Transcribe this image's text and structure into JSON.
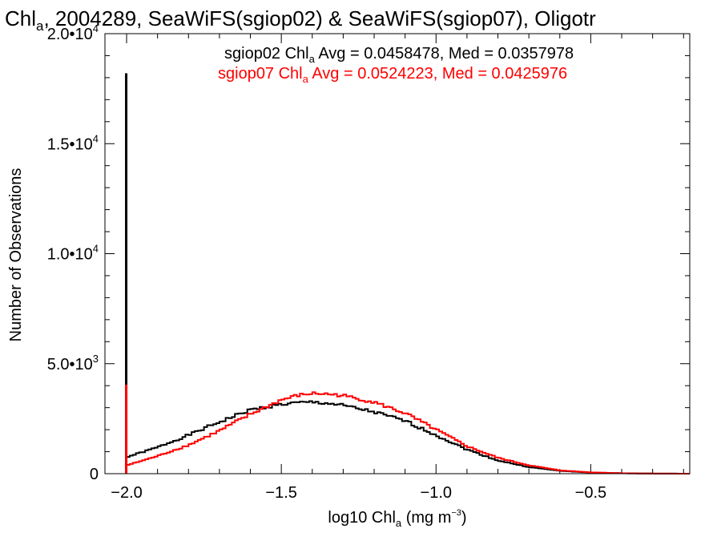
{
  "chart_data": {
    "type": "step-histogram",
    "title": {
      "prefix": "Chl",
      "sub": "a",
      "rest": ", 2004289, SeaWiFS(sgiop02) & SeaWiFS(sgiop07), Oligotr"
    },
    "xlabel": {
      "prefix": "log10 Chl",
      "sub": "a",
      "mid": " (mg m",
      "sup": "−3",
      "suffix": ")"
    },
    "ylabel": "Number of Observations",
    "xlim": [
      -2.07,
      -0.18
    ],
    "ylim": [
      0,
      20000
    ],
    "x_ticks": [
      {
        "value": -2.0,
        "label": "−2.0"
      },
      {
        "value": -1.5,
        "label": "−1.5"
      },
      {
        "value": -1.0,
        "label": "−1.0"
      },
      {
        "value": -0.5,
        "label": "−0.5"
      }
    ],
    "y_ticks": [
      {
        "value": 0,
        "label": "0",
        "exp": ""
      },
      {
        "value": 5000,
        "label": "5.0•10",
        "exp": "3"
      },
      {
        "value": 10000,
        "label": "1.0•10",
        "exp": "4"
      },
      {
        "value": 15000,
        "label": "1.5•10",
        "exp": "4"
      },
      {
        "value": 20000,
        "label": "2.0•10",
        "exp": "4"
      }
    ],
    "legend": [
      {
        "prefix": "sgiop02 Chl",
        "sub": "a",
        "rest": " Avg = 0.0458478, Med = 0.0357978",
        "color": "#000000"
      },
      {
        "prefix": "sgiop07 Chl",
        "sub": "a",
        "rest": " Avg = 0.0524223, Med = 0.0425976",
        "color": "#ff0000"
      }
    ],
    "series": [
      {
        "name": "sgiop02",
        "color": "#000000",
        "spike": {
          "x": -2.0,
          "y": 18200
        },
        "x": [
          -2.0,
          -1.9,
          -1.8,
          -1.7,
          -1.6,
          -1.5,
          -1.45,
          -1.4,
          -1.35,
          -1.3,
          -1.2,
          -1.1,
          -1.0,
          -0.9,
          -0.8,
          -0.7,
          -0.6,
          -0.5,
          -0.4,
          -0.3,
          -0.18
        ],
        "y": [
          750,
          1200,
          1750,
          2350,
          2900,
          3150,
          3220,
          3250,
          3200,
          3100,
          2800,
          2400,
          1750,
          1100,
          600,
          300,
          130,
          50,
          20,
          5,
          0
        ]
      },
      {
        "name": "sgiop07",
        "color": "#ff0000",
        "spike": {
          "x": -2.0,
          "y": 4050
        },
        "x": [
          -2.0,
          -1.9,
          -1.8,
          -1.7,
          -1.6,
          -1.5,
          -1.45,
          -1.4,
          -1.35,
          -1.3,
          -1.2,
          -1.1,
          -1.0,
          -0.9,
          -0.8,
          -0.7,
          -0.6,
          -0.5,
          -0.4,
          -0.3,
          -0.18
        ],
        "y": [
          380,
          800,
          1300,
          1950,
          2700,
          3350,
          3550,
          3650,
          3620,
          3550,
          3250,
          2750,
          2000,
          1250,
          720,
          380,
          150,
          60,
          20,
          5,
          0
        ]
      }
    ]
  }
}
